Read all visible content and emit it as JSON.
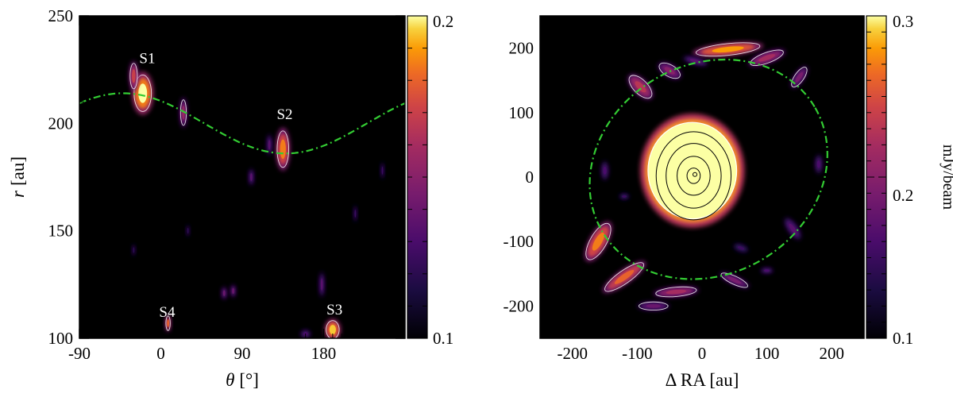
{
  "chart_data": [
    {
      "type": "heatmap",
      "xlabel_var": "θ",
      "xlabel_unit": "[°]",
      "ylabel_var": "r",
      "ylabel_unit": "[au]",
      "xlim": [
        -90,
        270
      ],
      "ylim": [
        100,
        250
      ],
      "xticks": [
        "-90",
        "0",
        "90",
        "180"
      ],
      "xtick_values": [
        -90,
        0,
        90,
        180
      ],
      "yticks": [
        "100",
        "150",
        "200",
        "250"
      ],
      "ytick_values": [
        100,
        150,
        200,
        250
      ],
      "colorbar": {
        "min_label": "0.1",
        "max_label": "0.2",
        "min": 0.1,
        "max": 0.2
      },
      "annotations": [
        {
          "label": "S1",
          "theta": -15,
          "r": 228
        },
        {
          "label": "S2",
          "theta": 137,
          "r": 202
        },
        {
          "label": "S3",
          "theta": 192,
          "r": 111
        },
        {
          "label": "S4",
          "theta": 7,
          "r": 110
        }
      ],
      "fit_curve": {
        "style": "dash-dot",
        "color": "#33cc33",
        "r_mean": 200,
        "amplitude": 14,
        "phase_deg": -42
      },
      "blobs": [
        {
          "theta": -20,
          "r": 214,
          "dtheta": 12,
          "dr": 10,
          "level": 1.0
        },
        {
          "theta": -30,
          "r": 222,
          "dtheta": 5,
          "dr": 7,
          "level": 0.7
        },
        {
          "theta": 25,
          "r": 205,
          "dtheta": 4,
          "dr": 7,
          "level": 0.55
        },
        {
          "theta": 135,
          "r": 188,
          "dtheta": 8,
          "dr": 10,
          "level": 0.85
        },
        {
          "theta": 120,
          "r": 190,
          "dtheta": 3,
          "dr": 5,
          "level": 0.35
        },
        {
          "theta": 190,
          "r": 104,
          "dtheta": 9,
          "dr": 5,
          "level": 0.95
        },
        {
          "theta": 8,
          "r": 107,
          "dtheta": 3,
          "dr": 4,
          "level": 0.8
        },
        {
          "theta": 70,
          "r": 121,
          "dtheta": 3,
          "dr": 3,
          "level": 0.4
        },
        {
          "theta": 80,
          "r": 122,
          "dtheta": 3,
          "dr": 3,
          "level": 0.4
        },
        {
          "theta": 100,
          "r": 175,
          "dtheta": 3,
          "dr": 4,
          "level": 0.35
        },
        {
          "theta": 178,
          "r": 125,
          "dtheta": 3,
          "dr": 6,
          "level": 0.35
        },
        {
          "theta": 215,
          "r": 158,
          "dtheta": 2,
          "dr": 4,
          "level": 0.25
        },
        {
          "theta": 245,
          "r": 178,
          "dtheta": 2,
          "dr": 4,
          "level": 0.25
        },
        {
          "theta": -30,
          "r": 141,
          "dtheta": 2,
          "dr": 3,
          "level": 0.2
        },
        {
          "theta": 30,
          "r": 150,
          "dtheta": 2,
          "dr": 3,
          "level": 0.2
        },
        {
          "theta": 160,
          "r": 102,
          "dtheta": 6,
          "dr": 2,
          "level": 0.3
        }
      ]
    },
    {
      "type": "heatmap",
      "xlabel": "Δ RA [au]",
      "xlim": [
        -250,
        250
      ],
      "ylim": [
        -250,
        250
      ],
      "xticks": [
        "-200",
        "-100",
        "0",
        "100",
        "200"
      ],
      "xtick_values": [
        -200,
        -100,
        0,
        100,
        200
      ],
      "yticks": [
        "-200",
        "-100",
        "0",
        "100",
        "200"
      ],
      "ytick_values": [
        -200,
        -100,
        0,
        100,
        200
      ],
      "colorbar": {
        "min_label": "0.1",
        "mid_label": "0.2",
        "max_label": "0.3",
        "min": 0.1,
        "max": 0.3,
        "mid": 0.2,
        "label": "mJy/beam"
      },
      "fit_ellipse": {
        "style": "dash-dot",
        "color": "#33cc33",
        "cx": 10,
        "cy": 12,
        "a": 190,
        "b": 162,
        "angle_deg": 30
      },
      "core": {
        "cx": -15,
        "cy": 10,
        "rx": 72,
        "ry": 80
      },
      "core_contours": [
        12,
        30,
        50,
        68
      ],
      "ring_blobs": [
        {
          "x": 40,
          "y": 198,
          "rx": 55,
          "ry": 10,
          "angle": -6,
          "level": 0.9
        },
        {
          "x": 100,
          "y": 185,
          "rx": 30,
          "ry": 9,
          "angle": -20,
          "level": 0.6
        },
        {
          "x": -50,
          "y": 165,
          "rx": 20,
          "ry": 10,
          "angle": 30,
          "level": 0.5
        },
        {
          "x": -95,
          "y": 140,
          "rx": 25,
          "ry": 12,
          "angle": 45,
          "level": 0.65
        },
        {
          "x": -10,
          "y": 180,
          "rx": 20,
          "ry": 6,
          "angle": 15,
          "level": 0.35
        },
        {
          "x": 150,
          "y": 155,
          "rx": 20,
          "ry": 8,
          "angle": -55,
          "level": 0.45
        },
        {
          "x": -160,
          "y": -100,
          "rx": 35,
          "ry": 14,
          "angle": -60,
          "level": 0.85
        },
        {
          "x": -120,
          "y": -155,
          "rx": 40,
          "ry": 11,
          "angle": -35,
          "level": 0.8
        },
        {
          "x": -40,
          "y": -178,
          "rx": 35,
          "ry": 8,
          "angle": -5,
          "level": 0.6
        },
        {
          "x": -75,
          "y": -200,
          "rx": 25,
          "ry": 7,
          "angle": 0,
          "level": 0.4
        },
        {
          "x": 50,
          "y": -160,
          "rx": 25,
          "ry": 7,
          "angle": 25,
          "level": 0.45
        },
        {
          "x": 140,
          "y": -80,
          "rx": 20,
          "ry": 8,
          "angle": 55,
          "level": 0.35
        },
        {
          "x": 180,
          "y": 20,
          "rx": 6,
          "ry": 15,
          "angle": 0,
          "level": 0.3
        },
        {
          "x": -150,
          "y": 10,
          "rx": 6,
          "ry": 15,
          "angle": 0,
          "level": 0.3
        },
        {
          "x": 100,
          "y": -145,
          "rx": 10,
          "ry": 5,
          "angle": 0,
          "level": 0.3
        },
        {
          "x": -120,
          "y": -30,
          "rx": 8,
          "ry": 5,
          "angle": 0,
          "level": 0.25
        },
        {
          "x": 60,
          "y": -110,
          "rx": 12,
          "ry": 6,
          "angle": 20,
          "level": 0.25
        }
      ]
    }
  ]
}
